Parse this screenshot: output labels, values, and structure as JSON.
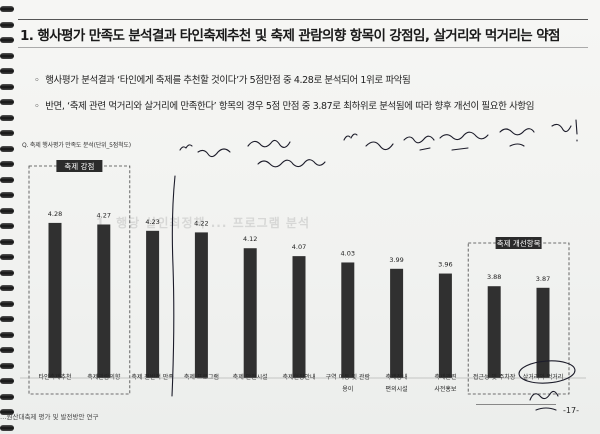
{
  "header": {
    "title": "1. 행사평가 만족도 분석결과 타인축제추천 및 축제 관람의향 항목이 강점임, 살거리와 먹거리는 약점"
  },
  "bullets": [
    "행사평가 분석결과 ‘타인에게 축제를 추천할 것이다’가 5점만점 중 4.28로 분석되어 1위로 파악됨",
    "반면, ‘축제 관련 먹거리와 살거리에 만족한다’ 항목의 경우 5점 만점 중 3.87로 최하위로 분석됨에 따라 향후 개선이 필요한 사항임"
  ],
  "chart_caption": "Q. 축제 행사평가 만족도 분석(단위_5점척도)",
  "watermark": "1. 행당 살인최정책 ... 프로그램 분석",
  "chart_data": {
    "type": "bar",
    "categories": [
      [
        "타인축제추천"
      ],
      [
        "축제관람의향"
      ],
      [
        "축제 전반적 만족"
      ],
      [
        "축제 프로그램"
      ],
      [
        "축제 안전시설"
      ],
      [
        "축제현장안내"
      ],
      [
        "구역 이동 및 관람",
        "용이"
      ],
      [
        "축제장내",
        "편의시설"
      ],
      [
        "축제관련",
        "사전홍보"
      ],
      [
        "접근성 및 주차장"
      ],
      [
        "살거리와 먹거리"
      ]
    ],
    "values": [
      4.28,
      4.27,
      4.23,
      4.22,
      4.12,
      4.07,
      4.03,
      3.99,
      3.96,
      3.88,
      3.87
    ],
    "value_labels": [
      "4.28",
      "4.27",
      "4.23",
      "4.22",
      "4.12",
      "4.07",
      "4.03",
      "3.99",
      "3.96",
      "3.88",
      "3.87"
    ],
    "ylim": [
      3.3,
      4.45
    ],
    "bar_color": "#303030",
    "groups": [
      {
        "label": "축제 강점",
        "from": 0,
        "to": 1
      },
      {
        "label": "축제 개선항목",
        "from": 9,
        "to": 10
      }
    ]
  },
  "annotations": {
    "handwriting": "\" 축제 관람 … 건의 … \" 을 강조 항목으로 보완 … 있네 !",
    "signature": "한계"
  },
  "footer": {
    "text": "…원산대축제 평가 및 발전방안 연구",
    "page_number": "-17-"
  },
  "colors": {
    "ink": "#1a1a1a",
    "bars": "#303030",
    "pen": "#1c1c2a"
  }
}
